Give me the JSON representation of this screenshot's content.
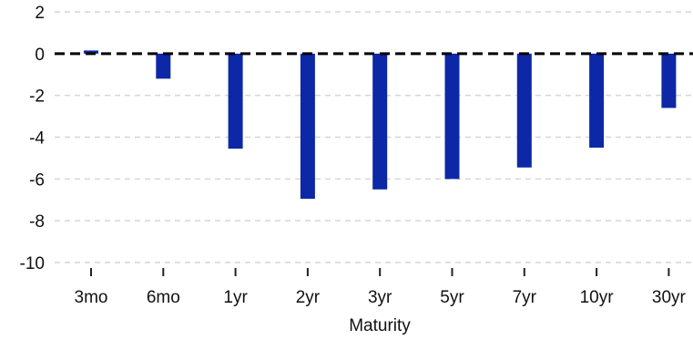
{
  "chart_data": {
    "type": "bar",
    "title": "",
    "xlabel": "Maturity",
    "ylabel": "",
    "categories": [
      "3mo",
      "6mo",
      "1yr",
      "2yr",
      "3yr",
      "5yr",
      "7yr",
      "10yr",
      "30yr"
    ],
    "series": [
      {
        "values": [
          0.15,
          -1.2,
          -4.55,
          -6.95,
          -6.5,
          -6.0,
          -5.45,
          -4.5,
          -2.6
        ]
      }
    ],
    "ylim": [
      -10,
      2
    ],
    "yticks": [
      2,
      0,
      -2,
      -4,
      -6,
      -8,
      -10
    ],
    "ytick_labels": [
      "2",
      "0",
      "-2",
      "-4",
      "-6",
      "-8",
      "-10"
    ],
    "grid": true,
    "zero_line": "dashed",
    "colors": {
      "bar": "#0d28a6",
      "grid": "#d6d6d6",
      "zero_line": "#000000",
      "axis_tick": "#222222"
    }
  }
}
